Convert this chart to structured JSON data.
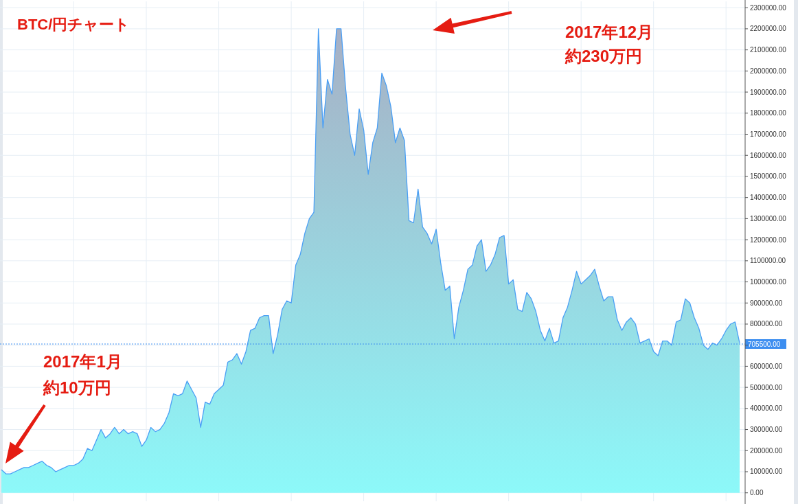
{
  "chart_data": {
    "type": "area",
    "title": "BTC/円チャート",
    "annotations": [
      "2017年1月",
      "約10万円",
      "2017年12月",
      "約230万円"
    ],
    "categories": [
      null,
      null,
      null,
      null,
      null,
      null,
      null,
      null,
      null,
      null,
      null,
      null,
      null,
      null,
      null,
      null,
      null,
      null,
      null,
      null,
      null,
      null,
      null,
      null,
      null,
      null,
      null,
      null,
      null,
      null,
      null,
      null,
      null,
      null,
      null,
      null,
      null,
      null,
      null,
      null,
      null,
      null,
      null,
      null,
      null,
      null,
      null,
      null,
      null,
      null,
      null,
      null,
      null,
      null,
      null,
      null,
      null,
      null,
      null,
      null,
      null,
      null,
      null,
      null,
      null,
      null,
      null,
      null,
      null,
      null,
      null,
      null,
      null,
      null,
      null,
      null,
      null,
      null,
      null,
      null,
      null,
      null,
      null,
      null,
      null,
      null,
      null,
      null,
      null,
      null,
      null,
      null,
      null,
      null,
      null,
      null,
      null,
      null,
      null,
      null,
      null,
      null,
      null,
      null,
      null,
      null,
      null,
      null,
      null,
      null,
      null,
      null,
      null,
      null,
      null,
      null,
      null,
      null,
      null,
      null,
      null,
      null,
      null,
      null,
      null,
      null,
      null,
      null,
      null,
      null,
      null,
      null,
      null,
      null,
      null,
      null,
      null,
      null,
      null,
      null,
      null,
      null,
      null,
      null,
      null,
      null,
      null,
      null,
      null,
      null,
      null,
      null,
      null,
      null,
      null,
      null,
      null,
      null,
      null,
      null,
      null,
      null,
      null,
      null
    ],
    "series": [
      {
        "color": "#4a9ff5",
        "values": [
          110000,
          90000,
          90000,
          100000,
          110000,
          120000,
          120000,
          130000,
          140000,
          150000,
          130000,
          120000,
          100000,
          110000,
          120000,
          130000,
          130000,
          140000,
          160000,
          210000,
          200000,
          250000,
          300000,
          260000,
          280000,
          310000,
          280000,
          300000,
          280000,
          290000,
          280000,
          220000,
          250000,
          310000,
          290000,
          300000,
          330000,
          380000,
          470000,
          460000,
          470000,
          530000,
          490000,
          450000,
          310000,
          430000,
          420000,
          470000,
          490000,
          510000,
          620000,
          630000,
          660000,
          610000,
          670000,
          770000,
          780000,
          830000,
          840000,
          840000,
          660000,
          750000,
          870000,
          910000,
          900000,
          1080000,
          1130000,
          1230000,
          1300000,
          1330000,
          2200000,
          1730000,
          1960000,
          1890000,
          2200000,
          2200000,
          1920000,
          1700000,
          1600000,
          1820000,
          1720000,
          1510000,
          1660000,
          1730000,
          1990000,
          1930000,
          1830000,
          1660000,
          1730000,
          1670000,
          1290000,
          1280000,
          1440000,
          1260000,
          1230000,
          1180000,
          1250000,
          1090000,
          960000,
          980000,
          730000,
          880000,
          960000,
          1060000,
          1080000,
          1170000,
          1200000,
          1050000,
          1080000,
          1130000,
          1210000,
          1220000,
          990000,
          1010000,
          870000,
          860000,
          950000,
          920000,
          860000,
          770000,
          720000,
          780000,
          710000,
          720000,
          830000,
          880000,
          960000,
          1050000,
          990000,
          1010000,
          1030000,
          1060000,
          980000,
          910000,
          930000,
          930000,
          820000,
          770000,
          810000,
          830000,
          800000,
          710000,
          720000,
          730000,
          670000,
          650000,
          720000,
          720000,
          700000,
          810000,
          820000,
          920000,
          900000,
          830000,
          780000,
          700000,
          680000,
          710000,
          700000,
          730000,
          770000,
          800000,
          810000,
          710000
        ]
      }
    ],
    "ylim": [
      -40000,
      2330000
    ],
    "yticks": [
      {
        "value": 0,
        "label": "0.00"
      },
      {
        "value": 100000,
        "label": "100000.00"
      },
      {
        "value": 200000,
        "label": "200000.00"
      },
      {
        "value": 300000,
        "label": "300000.00"
      },
      {
        "value": 400000,
        "label": "400000.00"
      },
      {
        "value": 500000,
        "label": "500000.00"
      },
      {
        "value": 600000,
        "label": "600000.00"
      },
      {
        "value": 700000,
        "label": null
      },
      {
        "value": 800000,
        "label": "800000.00"
      },
      {
        "value": 900000,
        "label": "900000.00"
      },
      {
        "value": 1000000,
        "label": "1000000.00"
      },
      {
        "value": 1100000,
        "label": "1100000.00"
      },
      {
        "value": 1200000,
        "label": "1200000.00"
      },
      {
        "value": 1300000,
        "label": "1300000.00"
      },
      {
        "value": 1400000,
        "label": "1400000.00"
      },
      {
        "value": 1500000,
        "label": "1500000.00"
      },
      {
        "value": 1600000,
        "label": "1600000.00"
      },
      {
        "value": 1700000,
        "label": "1700000.00"
      },
      {
        "value": 1800000,
        "label": "1800000.00"
      },
      {
        "value": 1900000,
        "label": "1900000.00"
      },
      {
        "value": 2000000,
        "label": "2000000.00"
      },
      {
        "value": 2100000,
        "label": "2100000.00"
      },
      {
        "value": 2200000,
        "label": "2200000.00"
      },
      {
        "value": 2300000,
        "label": "2300000.00"
      }
    ],
    "ref_lines": [
      {
        "axis": "y",
        "value": 705500,
        "label": "705500.00",
        "color": "#3d8ef0",
        "line_style": "dotted"
      }
    ],
    "grid": true
  }
}
